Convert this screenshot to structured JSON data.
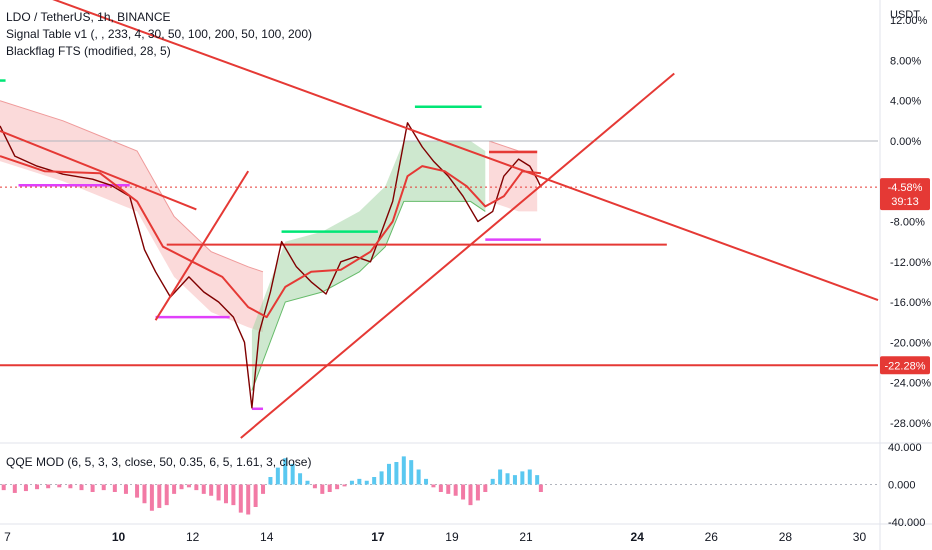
{
  "header": {
    "symbol_line": "LDO / TetherUS, 1h, BINANCE",
    "indicator1": "Signal Table v1 (, , 233, 4, 30, 50, 100, 200, 50, 100, 200)",
    "indicator2": "Blackflag FTS (modified, 28, 5)"
  },
  "axis": {
    "unit": "USDT"
  },
  "chart_data": {
    "type": "line",
    "title": "LDO / TetherUS, 1h, BINANCE",
    "y_scale": "percent",
    "ylim": [
      -30,
      14
    ],
    "y_ticks": [
      "12.00%",
      "8.00%",
      "4.00%",
      "0.00%",
      "-8.00%",
      "-12.00%",
      "-16.00%",
      "-20.00%",
      "-24.00%",
      "-28.00%"
    ],
    "x_ticks": [
      "7",
      "10",
      "12",
      "14",
      "17",
      "19",
      "21",
      "24",
      "26",
      "28",
      "30"
    ],
    "xlim": [
      6.8,
      30.5
    ],
    "series": [
      {
        "role": "price",
        "color": "#7f0000",
        "points": [
          [
            6.8,
            1.5
          ],
          [
            7.2,
            -1.5
          ],
          [
            7.8,
            -2.5
          ],
          [
            8.5,
            -3.3
          ],
          [
            9.3,
            -3.8
          ],
          [
            9.8,
            -4.4
          ],
          [
            10.3,
            -5.5
          ],
          [
            10.7,
            -10.8
          ],
          [
            11.0,
            -13.0
          ],
          [
            11.4,
            -15.5
          ],
          [
            11.9,
            -13.5
          ],
          [
            12.3,
            -15.0
          ],
          [
            12.7,
            -16.0
          ],
          [
            13.1,
            -17.5
          ],
          [
            13.4,
            -20.0
          ],
          [
            13.6,
            -26.5
          ],
          [
            13.8,
            -19.0
          ],
          [
            14.1,
            -15.0
          ],
          [
            14.4,
            -10.0
          ],
          [
            14.8,
            -12.5
          ],
          [
            15.2,
            -14.0
          ],
          [
            15.6,
            -15.2
          ],
          [
            16.0,
            -12.0
          ],
          [
            16.4,
            -11.5
          ],
          [
            16.8,
            -12.0
          ],
          [
            17.1,
            -9.0
          ],
          [
            17.4,
            -6.0
          ],
          [
            17.8,
            1.8
          ],
          [
            18.2,
            -0.6
          ],
          [
            18.5,
            -2.0
          ],
          [
            18.9,
            -3.5
          ],
          [
            19.3,
            -5.5
          ],
          [
            19.7,
            -8.0
          ],
          [
            20.1,
            -7.0
          ],
          [
            20.4,
            -3.5
          ],
          [
            20.8,
            -1.8
          ],
          [
            21.1,
            -2.5
          ],
          [
            21.3,
            -3.8
          ],
          [
            21.4,
            -4.58
          ]
        ],
        "last_value": "-4.58%",
        "countdown": "39:13"
      },
      {
        "role": "moving-average",
        "color": "#e53935",
        "points": [
          [
            6.8,
            -1.5
          ],
          [
            8.0,
            -3.0
          ],
          [
            9.5,
            -3.2
          ],
          [
            10.5,
            -6.0
          ],
          [
            11.2,
            -10.5
          ],
          [
            12.0,
            -12.0
          ],
          [
            12.8,
            -13.5
          ],
          [
            13.5,
            -16.5
          ],
          [
            14.0,
            -17.5
          ],
          [
            14.5,
            -14.5
          ],
          [
            15.2,
            -13.0
          ],
          [
            16.0,
            -12.8
          ],
          [
            16.8,
            -11.0
          ],
          [
            17.4,
            -8.0
          ],
          [
            17.8,
            -3.5
          ],
          [
            18.2,
            -2.5
          ],
          [
            18.8,
            -3.0
          ],
          [
            19.4,
            -4.5
          ],
          [
            19.9,
            -6.5
          ],
          [
            20.4,
            -5.5
          ],
          [
            20.9,
            -3.0
          ],
          [
            21.4,
            -3.2
          ]
        ]
      }
    ],
    "horizontal_levels": [
      {
        "value": 0.0,
        "color": "#b2b5be"
      },
      {
        "value": -22.28,
        "label": "-22.28%",
        "color": "#e53935"
      },
      {
        "value": -10.3,
        "color": "#e53935"
      }
    ],
    "trendlines": [
      {
        "from": [
          6.8,
          16.0
        ],
        "to": [
          30.5,
          -15.8
        ],
        "color": "#e53935"
      },
      {
        "from": [
          13.3,
          -29.5
        ],
        "to": [
          25.0,
          6.7
        ],
        "color": "#e53935"
      },
      {
        "from": [
          6.8,
          1.0
        ],
        "to": [
          12.1,
          -6.8
        ],
        "color": "#e53935"
      },
      {
        "from": [
          11.0,
          -17.8
        ],
        "to": [
          13.5,
          -3.0
        ],
        "color": "#e53935"
      }
    ],
    "blackflag_bands": [
      {
        "direction": "down",
        "color": "#f8bbbb",
        "points": [
          [
            6.8,
            4.0
          ],
          [
            8.5,
            2.0
          ],
          [
            10.5,
            -1.0
          ],
          [
            11.5,
            -7.5
          ],
          [
            12.5,
            -11.0
          ],
          [
            13.5,
            -12.5
          ],
          [
            13.9,
            -13.0
          ]
        ]
      },
      {
        "direction": "up",
        "color": "#a5d6a7",
        "points": [
          [
            13.6,
            -24.8
          ],
          [
            14.5,
            -16.0
          ],
          [
            15.5,
            -15.0
          ],
          [
            16.5,
            -13.0
          ],
          [
            17.2,
            -10.5
          ],
          [
            17.7,
            -6.0
          ],
          [
            18.5,
            -6.0
          ],
          [
            19.5,
            -6.0
          ],
          [
            19.9,
            -7.0
          ]
        ]
      },
      {
        "direction": "down",
        "color": "#f8bbbb",
        "points": [
          [
            20.0,
            0.0
          ],
          [
            20.8,
            -1.0
          ],
          [
            21.3,
            -1.0
          ]
        ]
      }
    ],
    "signal_steps": [
      {
        "color": "#e040fb",
        "from": [
          7.3,
          -4.4
        ],
        "to": [
          10.3,
          -4.4
        ]
      },
      {
        "color": "#e040fb",
        "from": [
          11.0,
          -17.5
        ],
        "to": [
          13.0,
          -17.5
        ]
      },
      {
        "color": "#e040fb",
        "from": [
          13.6,
          -26.6
        ],
        "to": [
          13.9,
          -26.6
        ]
      },
      {
        "color": "#00e676",
        "from": [
          14.4,
          -9.0
        ],
        "to": [
          17.0,
          -9.0
        ]
      },
      {
        "color": "#00e676",
        "from": [
          18.0,
          3.4
        ],
        "to": [
          19.8,
          3.4
        ]
      },
      {
        "color": "#e040fb",
        "from": [
          19.9,
          -9.8
        ],
        "to": [
          21.4,
          -9.8
        ]
      },
      {
        "color": "#e53935",
        "from": [
          20.0,
          -1.1
        ],
        "to": [
          21.3,
          -1.1
        ]
      },
      {
        "color": "#00e676",
        "from": [
          6.8,
          6.0
        ],
        "to": [
          6.95,
          6.0
        ]
      }
    ],
    "oscillator": {
      "name": "QQE MOD (6, 5, 3, 3, close, 50, 0.35, 6, 5, 1.61, 3, close)",
      "ylim": [
        -40,
        40
      ],
      "y_ticks": [
        "40.000",
        "0.000",
        "-40.000"
      ],
      "bars": [
        [
          6.9,
          -6
        ],
        [
          7.2,
          -9
        ],
        [
          7.5,
          -7
        ],
        [
          7.8,
          -5
        ],
        [
          8.1,
          -4
        ],
        [
          8.4,
          -3
        ],
        [
          8.7,
          -4
        ],
        [
          9.0,
          -6
        ],
        [
          9.3,
          -8
        ],
        [
          9.6,
          -6
        ],
        [
          9.9,
          -8
        ],
        [
          10.2,
          -10
        ],
        [
          10.5,
          -14
        ],
        [
          10.7,
          -20
        ],
        [
          10.9,
          -28
        ],
        [
          11.1,
          -25
        ],
        [
          11.3,
          -22
        ],
        [
          11.5,
          -10
        ],
        [
          11.7,
          -5
        ],
        [
          11.9,
          -3
        ],
        [
          12.1,
          -6
        ],
        [
          12.3,
          -10
        ],
        [
          12.5,
          -12
        ],
        [
          12.7,
          -17
        ],
        [
          12.9,
          -20
        ],
        [
          13.1,
          -22
        ],
        [
          13.3,
          -30
        ],
        [
          13.5,
          -32
        ],
        [
          13.7,
          -24
        ],
        [
          13.9,
          -10
        ],
        [
          14.1,
          8
        ],
        [
          14.3,
          18
        ],
        [
          14.5,
          28
        ],
        [
          14.7,
          22
        ],
        [
          14.9,
          12
        ],
        [
          15.1,
          4
        ],
        [
          15.3,
          -4
        ],
        [
          15.5,
          -10
        ],
        [
          15.7,
          -8
        ],
        [
          15.9,
          -5
        ],
        [
          16.1,
          -2
        ],
        [
          16.3,
          4
        ],
        [
          16.5,
          6
        ],
        [
          16.7,
          4
        ],
        [
          16.9,
          8
        ],
        [
          17.1,
          14
        ],
        [
          17.3,
          22
        ],
        [
          17.5,
          24
        ],
        [
          17.7,
          30
        ],
        [
          17.9,
          26
        ],
        [
          18.1,
          16
        ],
        [
          18.3,
          6
        ],
        [
          18.5,
          -3
        ],
        [
          18.7,
          -8
        ],
        [
          18.9,
          -10
        ],
        [
          19.1,
          -12
        ],
        [
          19.3,
          -16
        ],
        [
          19.5,
          -22
        ],
        [
          19.7,
          -17
        ],
        [
          19.9,
          -8
        ],
        [
          20.1,
          6
        ],
        [
          20.3,
          16
        ],
        [
          20.5,
          12
        ],
        [
          20.7,
          10
        ],
        [
          20.9,
          14
        ],
        [
          21.1,
          16
        ],
        [
          21.3,
          10
        ],
        [
          21.4,
          -8
        ]
      ]
    }
  }
}
